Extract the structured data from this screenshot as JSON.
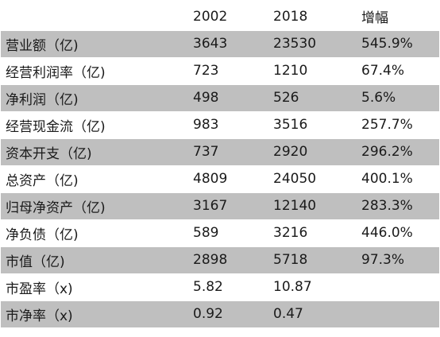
{
  "colors": {
    "row_shade": "#bfbfbf",
    "background": "#ffffff",
    "text": "#1a1a1a"
  },
  "table": {
    "headers": [
      "",
      "2002",
      "2018",
      "增幅"
    ],
    "rows": [
      {
        "label": "营业额（亿)",
        "v2002": "3643",
        "v2018": "23530",
        "growth": "545.9%",
        "shaded": true
      },
      {
        "label": "经营利润率（亿)",
        "v2002": "723",
        "v2018": "1210",
        "growth": "67.4%",
        "shaded": false
      },
      {
        "label": "净利润（亿)",
        "v2002": "498",
        "v2018": "526",
        "growth": "5.6%",
        "shaded": true
      },
      {
        "label": "经营现金流（亿)",
        "v2002": "983",
        "v2018": "3516",
        "growth": "257.7%",
        "shaded": false
      },
      {
        "label": "资本开支（亿)",
        "v2002": "737",
        "v2018": "2920",
        "growth": "296.2%",
        "shaded": true
      },
      {
        "label": "总资产（亿)",
        "v2002": "4809",
        "v2018": "24050",
        "growth": "400.1%",
        "shaded": false
      },
      {
        "label": "归母净资产（亿)",
        "v2002": "3167",
        "v2018": "12140",
        "growth": "283.3%",
        "shaded": true
      },
      {
        "label": "净负债（亿)",
        "v2002": "589",
        "v2018": "3216",
        "growth": "446.0%",
        "shaded": false
      },
      {
        "label": "市值（亿)",
        "v2002": "2898",
        "v2018": "5718",
        "growth": "97.3%",
        "shaded": true
      },
      {
        "label": "市盈率（x)",
        "v2002": "5.82",
        "v2018": "10.87",
        "growth": "",
        "shaded": false
      },
      {
        "label": "市净率（x)",
        "v2002": "0.92",
        "v2018": "0.47",
        "growth": "",
        "shaded": true
      }
    ]
  }
}
